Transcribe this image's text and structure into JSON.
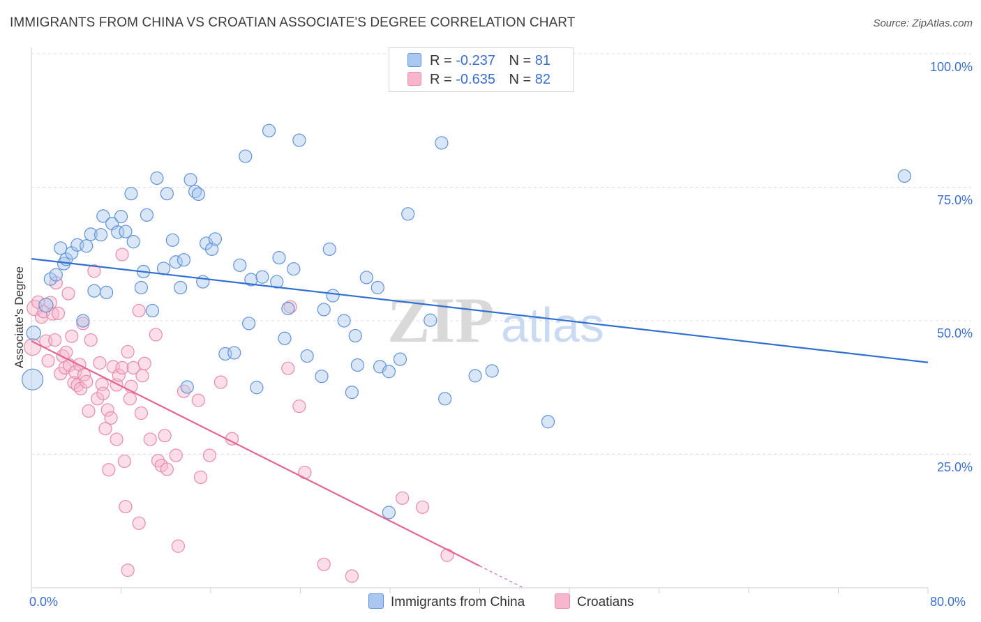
{
  "title": "IMMIGRANTS FROM CHINA VS CROATIAN ASSOCIATE'S DEGREE CORRELATION CHART",
  "source": "Source: ZipAtlas.com",
  "watermark": {
    "zip": "ZIP",
    "atlas": "atlas"
  },
  "legend": {
    "r_label": "R =",
    "n_label": "N =",
    "rows": [
      {
        "r": "-0.237",
        "n": "81"
      },
      {
        "r": "-0.635",
        "n": "82"
      }
    ]
  },
  "colors": {
    "china_fill": "#a9c7f0",
    "china_stroke": "#5f92d8",
    "china_line": "#2f6fcf",
    "croatia_fill": "#f7b6cc",
    "croatia_stroke": "#e98aaa",
    "croatia_line": "#e2678f",
    "tick_text": "#3a6fcf",
    "grid": "#dcdcdc"
  },
  "chart_data": {
    "type": "scatter",
    "title": "IMMIGRANTS FROM CHINA VS CROATIAN ASSOCIATE'S DEGREE CORRELATION CHART",
    "xlabel": "",
    "ylabel": "Associate's Degree",
    "xlim": [
      0,
      80
    ],
    "ylim": [
      0,
      100
    ],
    "x_tick_labels": [
      "0.0%",
      "80.0%"
    ],
    "y_ticks": [
      {
        "value": 100,
        "label": "100.0%"
      },
      {
        "value": 75,
        "label": "75.0%"
      },
      {
        "value": 50,
        "label": "50.0%"
      },
      {
        "value": 25,
        "label": "25.0%"
      }
    ],
    "grid": true,
    "legend_position": "top-center",
    "series": [
      {
        "name": "Immigrants from China",
        "trend": {
          "x": [
            0,
            80
          ],
          "y": [
            61.6,
            42.2
          ]
        },
        "points": [
          [
            0.1,
            39,
            15
          ],
          [
            0.2,
            47.7,
            10
          ],
          [
            1.3,
            52.9,
            10
          ],
          [
            1.7,
            57.8,
            9
          ],
          [
            2.2,
            58.6,
            9
          ],
          [
            2.6,
            63.6,
            9
          ],
          [
            2.9,
            60.7,
            9
          ],
          [
            3.1,
            61.5,
            9
          ],
          [
            3.6,
            62.7,
            9
          ],
          [
            4.1,
            64.2,
            9
          ],
          [
            4.9,
            64,
            9
          ],
          [
            4.6,
            50,
            9
          ],
          [
            5.3,
            66.2,
            9
          ],
          [
            5.6,
            55.6,
            9
          ],
          [
            6.2,
            66.1,
            9
          ],
          [
            6.4,
            69.6,
            9
          ],
          [
            6.7,
            55.3,
            9
          ],
          [
            7.2,
            68.2,
            9
          ],
          [
            7.7,
            66.6,
            9
          ],
          [
            8.0,
            69.5,
            9
          ],
          [
            8.4,
            66.7,
            9
          ],
          [
            8.9,
            73.8,
            9
          ],
          [
            9.1,
            64.8,
            9
          ],
          [
            9.8,
            56.2,
            9
          ],
          [
            10.0,
            59.2,
            9
          ],
          [
            10.3,
            69.8,
            9
          ],
          [
            10.8,
            51.9,
            9
          ],
          [
            11.2,
            76.7,
            9
          ],
          [
            11.8,
            59.8,
            9
          ],
          [
            12.1,
            73.8,
            9
          ],
          [
            12.6,
            65.1,
            9
          ],
          [
            12.9,
            61,
            9
          ],
          [
            13.3,
            56.2,
            9
          ],
          [
            13.6,
            61.4,
            9
          ],
          [
            13.9,
            37.6,
            9
          ],
          [
            14.2,
            76.4,
            9
          ],
          [
            14.6,
            74.2,
            9
          ],
          [
            14.9,
            73.7,
            9
          ],
          [
            15.3,
            57.3,
            9
          ],
          [
            15.6,
            64.5,
            9
          ],
          [
            16.1,
            63.4,
            9
          ],
          [
            16.4,
            65.3,
            9
          ],
          [
            17.3,
            43.8,
            9
          ],
          [
            18.1,
            44,
            9
          ],
          [
            18.6,
            60.4,
            9
          ],
          [
            19.1,
            80.8,
            9
          ],
          [
            19.4,
            49.5,
            9
          ],
          [
            19.6,
            57.7,
            9
          ],
          [
            20.1,
            37.5,
            9
          ],
          [
            20.6,
            58.2,
            9
          ],
          [
            21.2,
            85.6,
            9
          ],
          [
            21.9,
            57.3,
            9
          ],
          [
            22.1,
            61.8,
            9
          ],
          [
            22.6,
            46.7,
            9
          ],
          [
            22.9,
            52.3,
            9
          ],
          [
            23.4,
            59.7,
            9
          ],
          [
            23.9,
            83.8,
            9
          ],
          [
            24.6,
            43.4,
            9
          ],
          [
            25.9,
            39.6,
            9
          ],
          [
            26.1,
            52.1,
            9
          ],
          [
            26.6,
            63.4,
            9
          ],
          [
            26.9,
            54.7,
            9
          ],
          [
            27.9,
            50,
            9
          ],
          [
            28.6,
            36.6,
            9
          ],
          [
            28.9,
            47.2,
            9
          ],
          [
            29.1,
            41.7,
            9
          ],
          [
            29.9,
            58.1,
            9
          ],
          [
            30.9,
            56.2,
            9
          ],
          [
            31.1,
            41.4,
            9
          ],
          [
            31.9,
            40.5,
            9
          ],
          [
            31.9,
            14.1,
            9
          ],
          [
            32.9,
            42.8,
            9
          ],
          [
            33.6,
            70,
            9
          ],
          [
            35.6,
            50.1,
            9
          ],
          [
            36.6,
            83.3,
            9
          ],
          [
            36.9,
            35.4,
            9
          ],
          [
            39.6,
            39.7,
            9
          ],
          [
            41.1,
            40.6,
            9
          ],
          [
            46.1,
            31.1,
            9
          ],
          [
            77.9,
            77.1,
            9
          ]
        ]
      },
      {
        "name": "Croatians",
        "trend": {
          "x": [
            0,
            40
          ],
          "y": [
            46.2,
            4.1
          ]
        },
        "points": [
          [
            0.1,
            45.1,
            12
          ],
          [
            0.3,
            52.4,
            11
          ],
          [
            0.6,
            53.5,
            9
          ],
          [
            0.9,
            50.7,
            9
          ],
          [
            1.1,
            51.7,
            9
          ],
          [
            1.3,
            46.2,
            9
          ],
          [
            1.5,
            42.5,
            9
          ],
          [
            1.7,
            53.4,
            9
          ],
          [
            1.9,
            51.3,
            9
          ],
          [
            2.1,
            46.4,
            9
          ],
          [
            2.2,
            57.1,
            9
          ],
          [
            2.4,
            51.4,
            9
          ],
          [
            2.6,
            40.1,
            9
          ],
          [
            2.8,
            43.4,
            9
          ],
          [
            3.0,
            41.2,
            9
          ],
          [
            3.1,
            44.1,
            9
          ],
          [
            3.3,
            55.1,
            9
          ],
          [
            3.4,
            41.7,
            9
          ],
          [
            3.6,
            47.1,
            9
          ],
          [
            3.8,
            38.4,
            9
          ],
          [
            3.9,
            40.4,
            9
          ],
          [
            4.1,
            37.9,
            9
          ],
          [
            4.3,
            41.8,
            9
          ],
          [
            4.4,
            37.3,
            9
          ],
          [
            4.6,
            49.5,
            9
          ],
          [
            4.7,
            39.9,
            9
          ],
          [
            4.9,
            38.6,
            9
          ],
          [
            5.1,
            33.1,
            9
          ],
          [
            5.3,
            46.4,
            9
          ],
          [
            5.6,
            59.3,
            9
          ],
          [
            5.9,
            35.4,
            9
          ],
          [
            6.1,
            42.1,
            9
          ],
          [
            6.3,
            38.1,
            9
          ],
          [
            6.4,
            36.4,
            9
          ],
          [
            6.6,
            29.8,
            9
          ],
          [
            6.8,
            33.3,
            9
          ],
          [
            6.9,
            22.1,
            9
          ],
          [
            7.1,
            31.8,
            9
          ],
          [
            7.3,
            41.4,
            9
          ],
          [
            7.6,
            38,
            9
          ],
          [
            7.8,
            39.8,
            9
          ],
          [
            7.6,
            27.8,
            9
          ],
          [
            8.1,
            62.4,
            9
          ],
          [
            8.1,
            41.2,
            9
          ],
          [
            8.3,
            23.7,
            9
          ],
          [
            8.4,
            15.2,
            9
          ],
          [
            8.6,
            44.2,
            9
          ],
          [
            8.8,
            35.4,
            9
          ],
          [
            8.9,
            37.7,
            9
          ],
          [
            8.6,
            3.3,
            9
          ],
          [
            9.1,
            41.2,
            9
          ],
          [
            9.6,
            12.1,
            9
          ],
          [
            9.6,
            51.9,
            9
          ],
          [
            9.9,
            39.7,
            9
          ],
          [
            9.8,
            32.7,
            9
          ],
          [
            10.1,
            42,
            9
          ],
          [
            10.6,
            27.8,
            9
          ],
          [
            11.1,
            47.4,
            9
          ],
          [
            11.3,
            23.8,
            9
          ],
          [
            11.6,
            22.9,
            9
          ],
          [
            11.9,
            28.5,
            9
          ],
          [
            12.1,
            22.2,
            9
          ],
          [
            12.9,
            24.8,
            9
          ],
          [
            13.1,
            7.8,
            9
          ],
          [
            13.6,
            36.8,
            9
          ],
          [
            14.9,
            35.1,
            9
          ],
          [
            15.1,
            20.7,
            9
          ],
          [
            15.9,
            24.8,
            9
          ],
          [
            16.9,
            38.5,
            9
          ],
          [
            17.9,
            27.9,
            9
          ],
          [
            22.9,
            41.1,
            9
          ],
          [
            23.1,
            52.6,
            9
          ],
          [
            23.9,
            34,
            9
          ],
          [
            24.4,
            21.6,
            9
          ],
          [
            26.1,
            4.4,
            9
          ],
          [
            28.6,
            2.2,
            9
          ],
          [
            33.1,
            16.8,
            9
          ],
          [
            34.9,
            15.1,
            9
          ],
          [
            37.1,
            6.1,
            9
          ]
        ]
      }
    ]
  }
}
